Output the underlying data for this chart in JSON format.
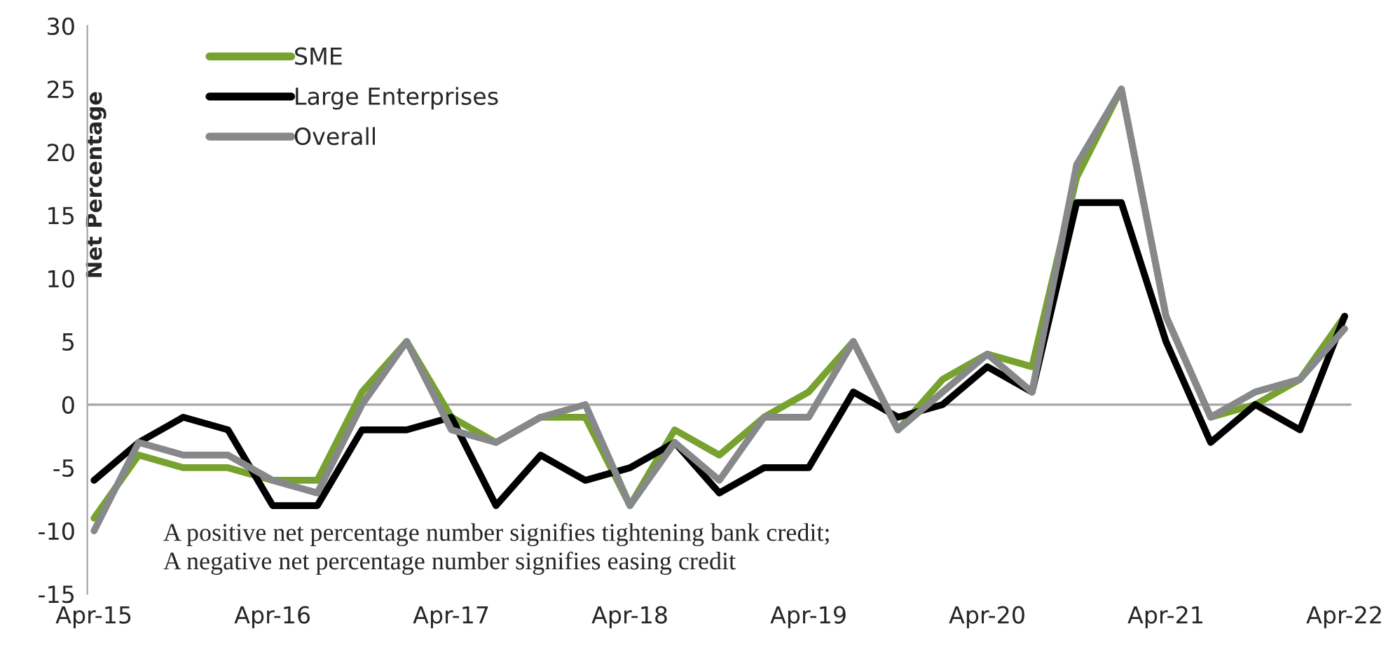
{
  "chart_data": {
    "type": "line",
    "ylabel": "Net Percentage",
    "categories": [
      "Apr-15",
      null,
      null,
      null,
      "Apr-16",
      null,
      null,
      null,
      "Apr-17",
      null,
      null,
      null,
      "Apr-18",
      null,
      null,
      null,
      "Apr-19",
      null,
      null,
      null,
      "Apr-20",
      null,
      null,
      null,
      "Apr-21",
      null,
      null,
      null,
      "Apr-22"
    ],
    "series": [
      {
        "name": "SME",
        "color": "#77a22f",
        "values": [
          -9,
          -4,
          -5,
          -5,
          -6,
          -6,
          1,
          5,
          -1,
          -3,
          -1,
          -1,
          -8,
          -2,
          -4,
          -1,
          1,
          5,
          -2,
          2,
          4,
          3,
          18,
          25,
          7,
          -1,
          0,
          2,
          7
        ]
      },
      {
        "name": "Large Enterprises",
        "color": "#000000",
        "values": [
          -6,
          -3,
          -1,
          -2,
          -8,
          -8,
          -2,
          -2,
          -1,
          -8,
          -4,
          -6,
          -5,
          -3,
          -7,
          -5,
          -5,
          1,
          -1,
          0,
          3,
          1,
          16,
          16,
          5,
          -3,
          0,
          -2,
          7
        ]
      },
      {
        "name": "Overall",
        "color": "#87888a",
        "values": [
          -10,
          -3,
          -4,
          -4,
          -6,
          -7,
          0,
          5,
          -2,
          -3,
          -1,
          0,
          -8,
          -3,
          -6,
          -1,
          -1,
          5,
          -2,
          1,
          4,
          1,
          19,
          25,
          7,
          -1,
          1,
          2,
          6
        ]
      }
    ],
    "ylim": [
      -15,
      30
    ],
    "yticks": [
      -15,
      -10,
      -5,
      0,
      5,
      10,
      15,
      20,
      25,
      30
    ],
    "ref_lines": [
      {
        "axis": "y",
        "value": 0,
        "color": "#a6a6a6"
      }
    ],
    "annotations": [
      "A positive net percentage number signifies tightening bank credit;\nA negative net percentage number signifies easing credit"
    ],
    "legend": "top left",
    "grid": false,
    "marker": "none",
    "line_style": "solid"
  }
}
